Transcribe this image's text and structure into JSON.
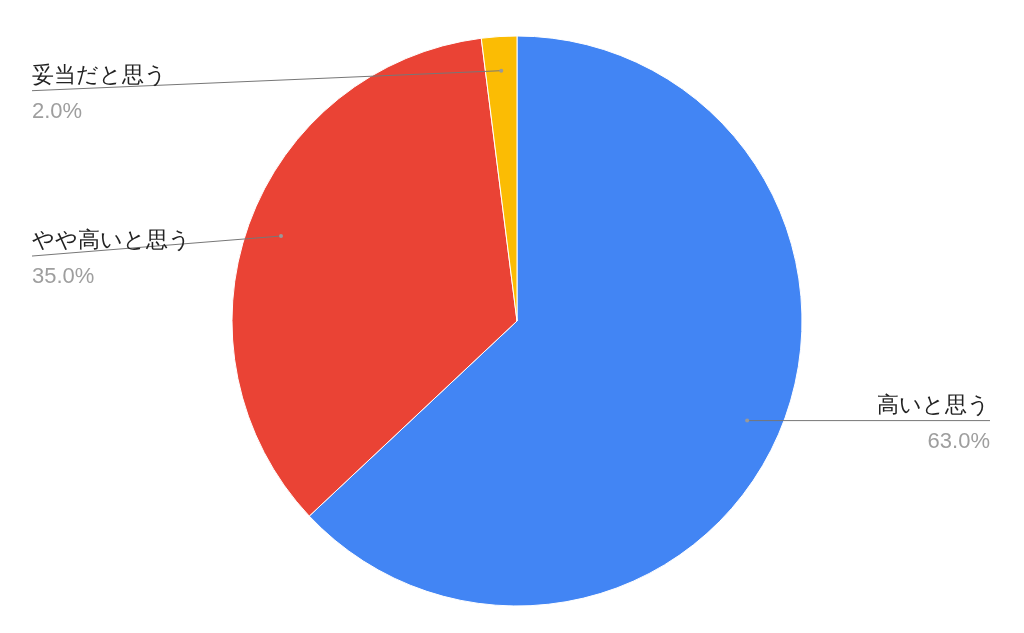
{
  "chart_data": {
    "type": "pie",
    "categories": [
      "高いと思う",
      "やや高いと思う",
      "妥当だと思う"
    ],
    "values": [
      63,
      35,
      2
    ],
    "value_labels": [
      "63.0%",
      "35.0%",
      "2.0%"
    ],
    "colors": [
      "#4285f4",
      "#ea4335",
      "#fbbc04"
    ],
    "legend": false
  }
}
